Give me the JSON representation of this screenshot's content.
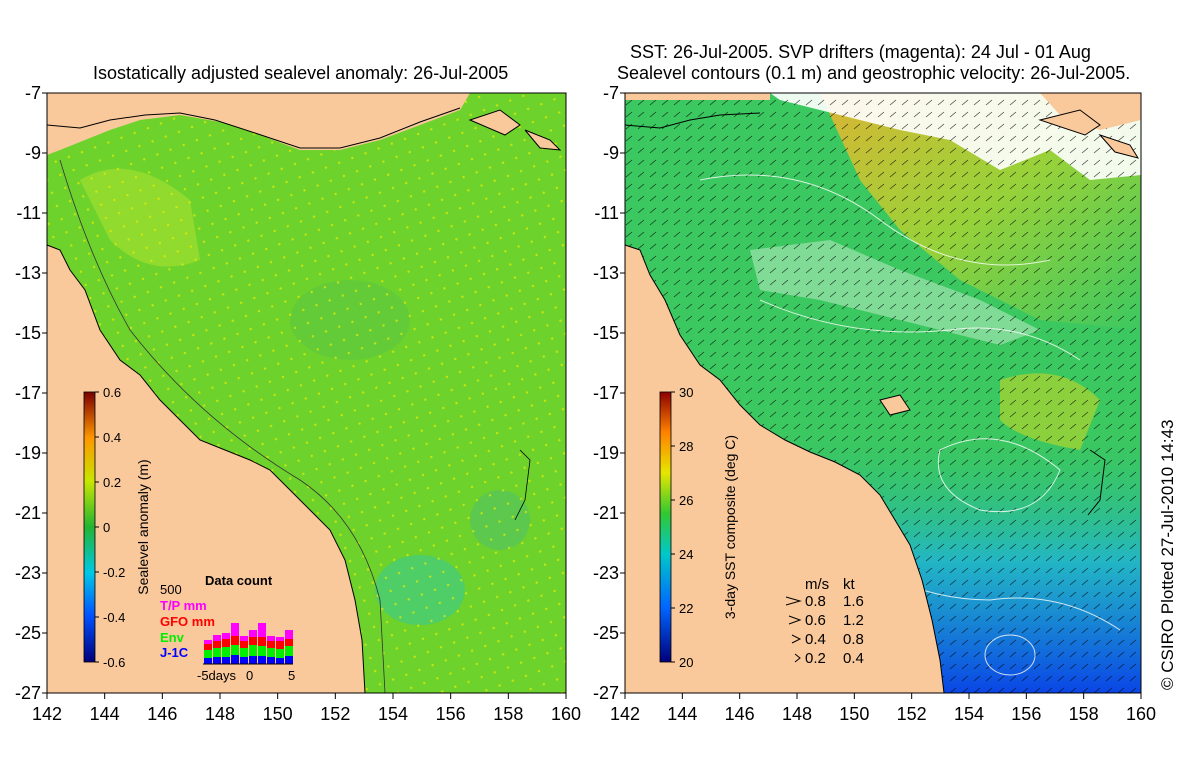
{
  "left_panel": {
    "title": "Isostatically adjusted sealevel anomaly: 26-Jul-2005",
    "colorbar": {
      "label": "Sealevel anomaly (m)",
      "ticks": [
        "0.6",
        "0.4",
        "0.2",
        "0",
        "-0.2",
        "-0.4",
        "-0.6"
      ]
    },
    "data_count": {
      "title": "Data count",
      "ymax_label": "500",
      "legend": [
        {
          "label": "T/P mm",
          "color": "#ff00ff"
        },
        {
          "label": "GFO mm",
          "color": "#ff0000"
        },
        {
          "label": "Env",
          "color": "#00ee00"
        },
        {
          "label": "J-1C",
          "color": "#0000ff"
        }
      ],
      "x_label_left": "-5days",
      "x_label_mid": "0",
      "x_label_right": "5"
    }
  },
  "right_panel": {
    "title_line1": "SST: 26-Jul-2005. SVP drifters (magenta): 24 Jul - 01 Aug",
    "title_line2": "Sealevel contours (0.1 m) and geostrophic velocity: 26-Jul-2005.",
    "colorbar": {
      "label": "3-day SST composite (deg C)",
      "ticks": [
        "30",
        "28",
        "26",
        "24",
        "22",
        "20"
      ]
    },
    "velocity_legend": {
      "header_ms": "m/s",
      "header_kt": "kt",
      "rows": [
        {
          "ms": "0.8",
          "kt": "1.6"
        },
        {
          "ms": "0.6",
          "kt": "1.2"
        },
        {
          "ms": "0.4",
          "kt": "0.8"
        },
        {
          "ms": "0.2",
          "kt": "0.4"
        }
      ]
    }
  },
  "axes": {
    "lon_ticks": [
      "142",
      "144",
      "146",
      "148",
      "150",
      "152",
      "154",
      "156",
      "158",
      "160"
    ],
    "lat_ticks": [
      "-7",
      "-9",
      "-11",
      "-13",
      "-15",
      "-17",
      "-19",
      "-21",
      "-23",
      "-25",
      "-27"
    ]
  },
  "credit": "© CSIRO Plotted 27-Jul-2010 14:43",
  "colors": {
    "land": "#f9c89b",
    "ocean_sla": "#6ed22c",
    "ocean_sst": "#3cc860"
  }
}
